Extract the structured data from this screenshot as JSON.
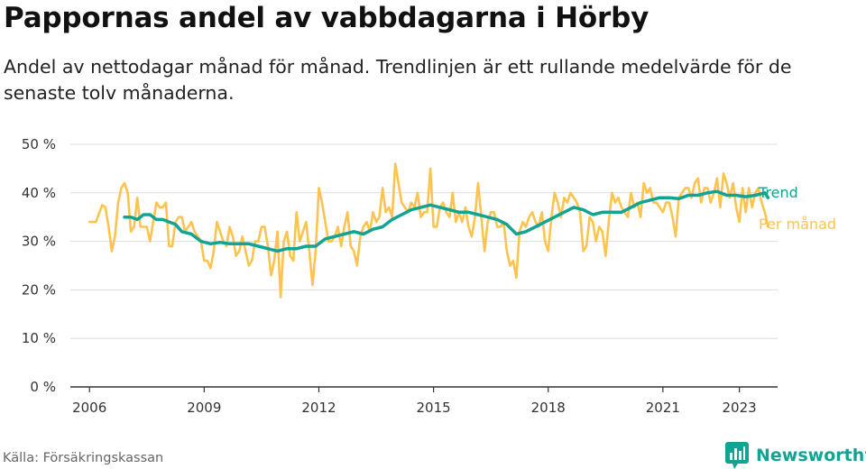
{
  "title": "Pappornas andel av vabbdagarna i Hörby",
  "subtitle": "Andel av nettodagar månad för månad. Trendlinjen är ett rullande medelvärde för de senaste tolv månaderna.",
  "source": "Källa: Försäkringskassan",
  "brand": {
    "name": "Newsworthy",
    "logo_icon": "bar-chart-speech-bubble-icon",
    "color": "#12a392"
  },
  "colors": {
    "trend": "#12a392",
    "monthly": "#fcc44e",
    "grid": "#dddddd",
    "axis": "#333333"
  },
  "chart_data": {
    "type": "line",
    "x_axis": {
      "type": "date",
      "min": "2005-07",
      "max": "2024-01",
      "ticks": [
        "2006",
        "2009",
        "2012",
        "2015",
        "2018",
        "2021",
        "2023"
      ]
    },
    "y_axis": {
      "min": 0,
      "max": 50,
      "ticks": [
        0,
        10,
        20,
        30,
        40,
        50
      ],
      "tick_labels": [
        "0 %",
        "10 %",
        "20 %",
        "30 %",
        "40 %",
        "50 %"
      ]
    },
    "grid": "horizontal",
    "series": [
      {
        "name": "Per månad",
        "key": "monthly",
        "points": [
          [
            "2006-01",
            34
          ],
          [
            "2006-03",
            34
          ],
          [
            "2006-05",
            37.5
          ],
          [
            "2006-06",
            37
          ],
          [
            "2006-07",
            33
          ],
          [
            "2006-08",
            28
          ],
          [
            "2006-09",
            31
          ],
          [
            "2006-10",
            38
          ],
          [
            "2006-11",
            41
          ],
          [
            "2006-12",
            42
          ],
          [
            "2007-01",
            40
          ],
          [
            "2007-02",
            32
          ],
          [
            "2007-03",
            33
          ],
          [
            "2007-04",
            39
          ],
          [
            "2007-05",
            33
          ],
          [
            "2007-06",
            33
          ],
          [
            "2007-07",
            33
          ],
          [
            "2007-08",
            30
          ],
          [
            "2007-09",
            34
          ],
          [
            "2007-10",
            38
          ],
          [
            "2007-11",
            37
          ],
          [
            "2007-12",
            37
          ],
          [
            "2008-01",
            38
          ],
          [
            "2008-02",
            29
          ],
          [
            "2008-03",
            29
          ],
          [
            "2008-04",
            34
          ],
          [
            "2008-05",
            35
          ],
          [
            "2008-06",
            35
          ],
          [
            "2008-07",
            32
          ],
          [
            "2008-08",
            33
          ],
          [
            "2008-09",
            34
          ],
          [
            "2008-10",
            32
          ],
          [
            "2008-11",
            31
          ],
          [
            "2008-12",
            30
          ],
          [
            "2009-01",
            26
          ],
          [
            "2009-02",
            26
          ],
          [
            "2009-03",
            24.5
          ],
          [
            "2009-04",
            28
          ],
          [
            "2009-05",
            34
          ],
          [
            "2009-06",
            32
          ],
          [
            "2009-07",
            30
          ],
          [
            "2009-08",
            29
          ],
          [
            "2009-09",
            33
          ],
          [
            "2009-10",
            31
          ],
          [
            "2009-11",
            27
          ],
          [
            "2009-12",
            28
          ],
          [
            "2010-01",
            31
          ],
          [
            "2010-02",
            28
          ],
          [
            "2010-03",
            25
          ],
          [
            "2010-04",
            26
          ],
          [
            "2010-05",
            30
          ],
          [
            "2010-06",
            30
          ],
          [
            "2010-07",
            33
          ],
          [
            "2010-08",
            33
          ],
          [
            "2010-09",
            29
          ],
          [
            "2010-10",
            23
          ],
          [
            "2010-11",
            26
          ],
          [
            "2010-12",
            32
          ],
          [
            "2011-01",
            18.5
          ],
          [
            "2011-02",
            30
          ],
          [
            "2011-03",
            32
          ],
          [
            "2011-04",
            27
          ],
          [
            "2011-05",
            26
          ],
          [
            "2011-06",
            36
          ],
          [
            "2011-07",
            30
          ],
          [
            "2011-08",
            32
          ],
          [
            "2011-09",
            34
          ],
          [
            "2011-10",
            28
          ],
          [
            "2011-11",
            21
          ],
          [
            "2011-12",
            28
          ],
          [
            "2012-01",
            41
          ],
          [
            "2012-02",
            38
          ],
          [
            "2012-03",
            34
          ],
          [
            "2012-04",
            30
          ],
          [
            "2012-05",
            30
          ],
          [
            "2012-06",
            31
          ],
          [
            "2012-07",
            33
          ],
          [
            "2012-08",
            29
          ],
          [
            "2012-09",
            33
          ],
          [
            "2012-10",
            36
          ],
          [
            "2012-11",
            29
          ],
          [
            "2012-12",
            28
          ],
          [
            "2013-01",
            25
          ],
          [
            "2013-02",
            31
          ],
          [
            "2013-03",
            33
          ],
          [
            "2013-04",
            34
          ],
          [
            "2013-05",
            32
          ],
          [
            "2013-06",
            36
          ],
          [
            "2013-07",
            34
          ],
          [
            "2013-08",
            35
          ],
          [
            "2013-09",
            41
          ],
          [
            "2013-10",
            36
          ],
          [
            "2013-11",
            37
          ],
          [
            "2013-12",
            35
          ],
          [
            "2014-01",
            46
          ],
          [
            "2014-02",
            42
          ],
          [
            "2014-03",
            38
          ],
          [
            "2014-04",
            37
          ],
          [
            "2014-05",
            36
          ],
          [
            "2014-06",
            38
          ],
          [
            "2014-07",
            37
          ],
          [
            "2014-08",
            40
          ],
          [
            "2014-09",
            35
          ],
          [
            "2014-10",
            36
          ],
          [
            "2014-11",
            36
          ],
          [
            "2014-12",
            45
          ],
          [
            "2015-01",
            33
          ],
          [
            "2015-02",
            33
          ],
          [
            "2015-03",
            37
          ],
          [
            "2015-04",
            38
          ],
          [
            "2015-05",
            36
          ],
          [
            "2015-06",
            35
          ],
          [
            "2015-07",
            40
          ],
          [
            "2015-08",
            34
          ],
          [
            "2015-09",
            36
          ],
          [
            "2015-10",
            34
          ],
          [
            "2015-11",
            37
          ],
          [
            "2015-12",
            33
          ],
          [
            "2016-01",
            31
          ],
          [
            "2016-02",
            35
          ],
          [
            "2016-03",
            42
          ],
          [
            "2016-04",
            35
          ],
          [
            "2016-05",
            28
          ],
          [
            "2016-06",
            34
          ],
          [
            "2016-07",
            36
          ],
          [
            "2016-08",
            36
          ],
          [
            "2016-09",
            33
          ],
          [
            "2016-10",
            33
          ],
          [
            "2016-11",
            34
          ],
          [
            "2016-12",
            28
          ],
          [
            "2017-01",
            25
          ],
          [
            "2017-02",
            26
          ],
          [
            "2017-03",
            22.5
          ],
          [
            "2017-04",
            32
          ],
          [
            "2017-05",
            34
          ],
          [
            "2017-06",
            33
          ],
          [
            "2017-07",
            35
          ],
          [
            "2017-08",
            36
          ],
          [
            "2017-09",
            34
          ],
          [
            "2017-10",
            33
          ],
          [
            "2017-11",
            36
          ],
          [
            "2017-12",
            30
          ],
          [
            "2018-01",
            28
          ],
          [
            "2018-02",
            35
          ],
          [
            "2018-03",
            40
          ],
          [
            "2018-04",
            38
          ],
          [
            "2018-05",
            35
          ],
          [
            "2018-06",
            39
          ],
          [
            "2018-07",
            38
          ],
          [
            "2018-08",
            40
          ],
          [
            "2018-09",
            39
          ],
          [
            "2018-10",
            38
          ],
          [
            "2018-11",
            36
          ],
          [
            "2018-12",
            28
          ],
          [
            "2019-01",
            29
          ],
          [
            "2019-02",
            35
          ],
          [
            "2019-03",
            34
          ],
          [
            "2019-04",
            30
          ],
          [
            "2019-05",
            33
          ],
          [
            "2019-06",
            32
          ],
          [
            "2019-07",
            27
          ],
          [
            "2019-08",
            34
          ],
          [
            "2019-09",
            40
          ],
          [
            "2019-10",
            38
          ],
          [
            "2019-11",
            39
          ],
          [
            "2019-12",
            37
          ],
          [
            "2020-01",
            36
          ],
          [
            "2020-02",
            35
          ],
          [
            "2020-03",
            40
          ],
          [
            "2020-04",
            37
          ],
          [
            "2020-05",
            38
          ],
          [
            "2020-06",
            35
          ],
          [
            "2020-07",
            42
          ],
          [
            "2020-08",
            40
          ],
          [
            "2020-09",
            41
          ],
          [
            "2020-10",
            38
          ],
          [
            "2020-11",
            38
          ],
          [
            "2020-12",
            37
          ],
          [
            "2021-01",
            36
          ],
          [
            "2021-02",
            38
          ],
          [
            "2021-03",
            38
          ],
          [
            "2021-04",
            35
          ],
          [
            "2021-05",
            31
          ],
          [
            "2021-06",
            39
          ],
          [
            "2021-07",
            40
          ],
          [
            "2021-08",
            41
          ],
          [
            "2021-09",
            41
          ],
          [
            "2021-10",
            39
          ],
          [
            "2021-11",
            42
          ],
          [
            "2021-12",
            43
          ],
          [
            "2022-01",
            38
          ],
          [
            "2022-02",
            41
          ],
          [
            "2022-03",
            41
          ],
          [
            "2022-04",
            38
          ],
          [
            "2022-05",
            40
          ],
          [
            "2022-06",
            43
          ],
          [
            "2022-07",
            37
          ],
          [
            "2022-08",
            44
          ],
          [
            "2022-09",
            42
          ],
          [
            "2022-10",
            39
          ],
          [
            "2022-11",
            42
          ],
          [
            "2022-12",
            37
          ],
          [
            "2023-01",
            34
          ],
          [
            "2023-02",
            41
          ],
          [
            "2023-03",
            36
          ],
          [
            "2023-04",
            41
          ],
          [
            "2023-05",
            37
          ],
          [
            "2023-06",
            40
          ],
          [
            "2023-07",
            41
          ],
          [
            "2023-08",
            38
          ],
          [
            "2023-09",
            36
          ],
          [
            "2023-10",
            33
          ]
        ]
      },
      {
        "name": "Trend",
        "key": "trend",
        "points": [
          [
            "2006-12",
            35
          ],
          [
            "2007-02",
            35
          ],
          [
            "2007-04",
            34.5
          ],
          [
            "2007-06",
            35.5
          ],
          [
            "2007-08",
            35.5
          ],
          [
            "2007-10",
            34.5
          ],
          [
            "2007-12",
            34.5
          ],
          [
            "2008-02",
            34
          ],
          [
            "2008-04",
            33.5
          ],
          [
            "2008-06",
            32
          ],
          [
            "2008-09",
            31.5
          ],
          [
            "2008-12",
            30
          ],
          [
            "2009-03",
            29.5
          ],
          [
            "2009-06",
            29.8
          ],
          [
            "2009-09",
            29.5
          ],
          [
            "2009-12",
            29.5
          ],
          [
            "2010-03",
            29.5
          ],
          [
            "2010-06",
            29
          ],
          [
            "2010-09",
            28.5
          ],
          [
            "2010-12",
            28
          ],
          [
            "2011-03",
            28.5
          ],
          [
            "2011-06",
            28.5
          ],
          [
            "2011-09",
            29
          ],
          [
            "2011-12",
            29
          ],
          [
            "2012-03",
            30.5
          ],
          [
            "2012-06",
            31
          ],
          [
            "2012-09",
            31.5
          ],
          [
            "2012-12",
            32
          ],
          [
            "2013-03",
            31.5
          ],
          [
            "2013-06",
            32.5
          ],
          [
            "2013-09",
            33
          ],
          [
            "2013-12",
            34.5
          ],
          [
            "2014-03",
            35.5
          ],
          [
            "2014-06",
            36.5
          ],
          [
            "2014-09",
            37
          ],
          [
            "2014-12",
            37.5
          ],
          [
            "2015-03",
            37
          ],
          [
            "2015-06",
            36.5
          ],
          [
            "2015-09",
            36
          ],
          [
            "2015-12",
            36
          ],
          [
            "2016-03",
            35.5
          ],
          [
            "2016-06",
            35
          ],
          [
            "2016-09",
            34.5
          ],
          [
            "2016-12",
            33.5
          ],
          [
            "2017-03",
            31.5
          ],
          [
            "2017-06",
            32
          ],
          [
            "2017-09",
            33
          ],
          [
            "2017-12",
            34
          ],
          [
            "2018-03",
            35
          ],
          [
            "2018-06",
            36
          ],
          [
            "2018-09",
            37
          ],
          [
            "2018-12",
            36.5
          ],
          [
            "2019-03",
            35.5
          ],
          [
            "2019-06",
            36
          ],
          [
            "2019-09",
            36
          ],
          [
            "2019-12",
            36
          ],
          [
            "2020-03",
            37
          ],
          [
            "2020-06",
            38
          ],
          [
            "2020-09",
            38.5
          ],
          [
            "2020-12",
            39
          ],
          [
            "2021-03",
            39
          ],
          [
            "2021-06",
            38.8
          ],
          [
            "2021-09",
            39.5
          ],
          [
            "2021-12",
            39.5
          ],
          [
            "2022-03",
            40
          ],
          [
            "2022-06",
            40.3
          ],
          [
            "2022-09",
            39.5
          ],
          [
            "2022-12",
            39.5
          ],
          [
            "2023-03",
            39.2
          ],
          [
            "2023-06",
            39.5
          ],
          [
            "2023-09",
            40
          ],
          [
            "2023-10",
            39
          ]
        ]
      }
    ]
  }
}
